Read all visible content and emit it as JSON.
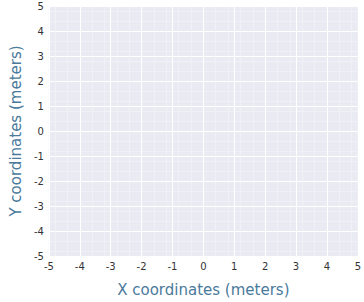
{
  "chart_data": {
    "type": "scatter",
    "xlabel": "X coordinates (meters)",
    "ylabel": "Y coordinates (meters)",
    "xlim": [
      -5,
      5
    ],
    "ylim": [
      -5,
      5
    ],
    "xticks": [
      -5,
      -4,
      -3,
      -2,
      -1,
      0,
      1,
      2,
      3,
      4,
      5
    ],
    "yticks": [
      -5,
      -4,
      -3,
      -2,
      -1,
      0,
      1,
      2,
      3,
      4,
      5
    ],
    "grid": true
  }
}
